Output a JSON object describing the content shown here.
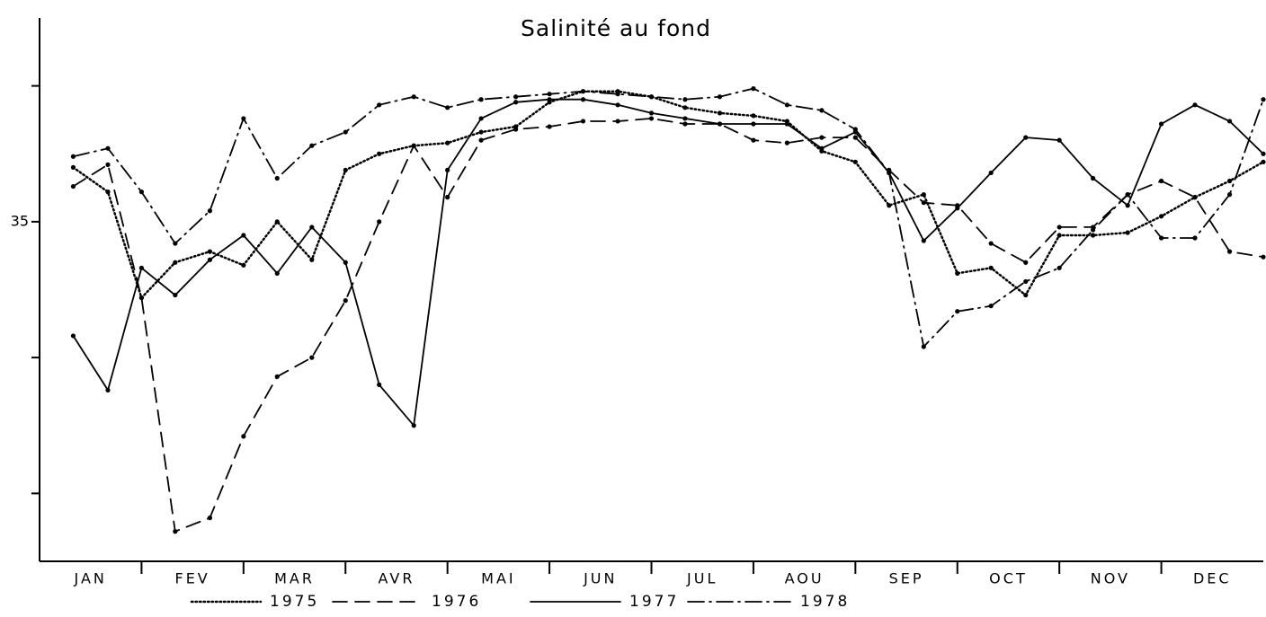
{
  "chart_data": {
    "type": "line",
    "title": "Salinité au fond",
    "categories": [
      "JAN",
      "FEV",
      "MAR",
      "AVR",
      "MAI",
      "JUN",
      "JUL",
      "AOU",
      "SEP",
      "OCT",
      "NOV",
      "DEC"
    ],
    "x": [
      0.33,
      0.67,
      1,
      1.33,
      1.67,
      2,
      2.33,
      2.67,
      3,
      3.33,
      3.67,
      4,
      4.33,
      4.67,
      5,
      5.33,
      5.67,
      6,
      6.33,
      6.67,
      7,
      7.33,
      7.67,
      8,
      8.33,
      8.67,
      9,
      9.33,
      9.67,
      10,
      10.33,
      10.67,
      11,
      11.33,
      11.67,
      12
    ],
    "xlim": [
      0,
      12
    ],
    "ylim": [
      33.75,
      35.75
    ],
    "yticks": [
      35
    ],
    "minor_yticks": [
      34,
      34.5,
      35.5
    ],
    "series": [
      {
        "name": "1975",
        "color": "#000000",
        "dash": "dotted",
        "values": [
          35.2,
          35.11,
          34.72,
          34.85,
          34.89,
          34.84,
          35.0,
          34.86,
          35.19,
          35.25,
          35.28,
          35.29,
          35.33,
          35.35,
          35.44,
          35.48,
          35.48,
          35.46,
          35.42,
          35.4,
          35.39,
          35.37,
          35.26,
          35.22,
          35.06,
          35.1,
          34.81,
          34.83,
          34.73,
          34.95,
          34.95,
          34.96,
          35.02,
          35.09,
          35.15,
          35.22
        ]
      },
      {
        "name": "1976",
        "color": "#000000",
        "dash": "dashed",
        "values": [
          35.13,
          35.21,
          34.72,
          33.86,
          33.91,
          34.21,
          34.43,
          34.5,
          34.71,
          35.0,
          35.28,
          35.09,
          35.3,
          35.34,
          35.35,
          35.37,
          35.37,
          35.38,
          35.36,
          35.36,
          35.3,
          35.29,
          35.31,
          35.31,
          35.19,
          35.07,
          35.06,
          34.92,
          34.85,
          34.98,
          34.98,
          35.1,
          35.15,
          35.09,
          34.89,
          34.87
        ]
      },
      {
        "name": "1977",
        "color": "#000000",
        "dash": "solid",
        "values": [
          34.58,
          34.38,
          34.83,
          34.73,
          34.86,
          34.95,
          34.81,
          34.98,
          34.85,
          34.4,
          34.25,
          35.19,
          35.38,
          35.44,
          35.45,
          35.45,
          35.43,
          35.4,
          35.38,
          35.36,
          35.36,
          35.36,
          35.27,
          35.33,
          35.18,
          34.93,
          35.05,
          35.18,
          35.31,
          35.3,
          35.16,
          35.06,
          35.36,
          35.43,
          35.37,
          35.25
        ]
      },
      {
        "name": "1978",
        "color": "#000000",
        "dash": "dashdot",
        "values": [
          35.24,
          35.27,
          35.11,
          34.92,
          35.04,
          35.38,
          35.16,
          35.28,
          35.33,
          35.43,
          35.46,
          35.42,
          35.45,
          35.46,
          35.47,
          35.48,
          35.47,
          35.46,
          35.45,
          35.46,
          35.49,
          35.43,
          35.41,
          35.34,
          35.18,
          34.54,
          34.67,
          34.69,
          34.78,
          34.83,
          34.97,
          35.1,
          34.94,
          34.94,
          35.1,
          35.45
        ]
      }
    ]
  }
}
